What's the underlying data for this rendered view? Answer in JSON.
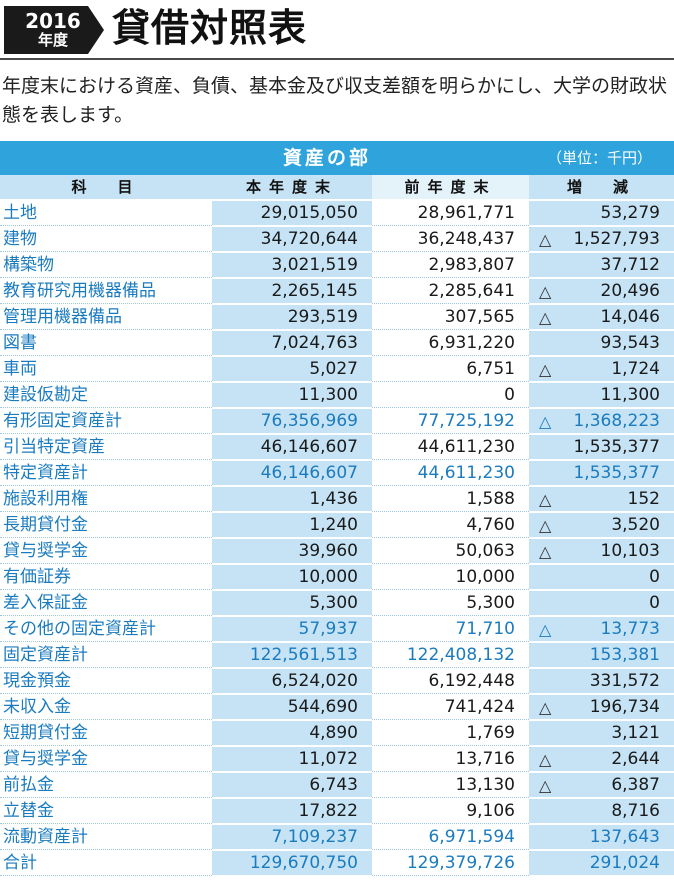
{
  "header": {
    "year": "2016",
    "year_label": "年度",
    "title": "貸借対照表"
  },
  "description": "年度末における資産、負債、基本金及び収支差額を明らかにし、大学の財政状態を表します。",
  "section": {
    "title": "資産の部",
    "unit": "（単位：千円）"
  },
  "columns": {
    "item": "科　目",
    "current": "本年度末",
    "previous": "前年度末",
    "change": "増　減"
  },
  "rows": [
    {
      "name": "土地",
      "current": "29,015,050",
      "previous": "28,961,771",
      "neg": "",
      "change": "53,279",
      "subtotal": false
    },
    {
      "name": "建物",
      "current": "34,720,644",
      "previous": "36,248,437",
      "neg": "△",
      "change": "1,527,793",
      "subtotal": false
    },
    {
      "name": "構築物",
      "current": "3,021,519",
      "previous": "2,983,807",
      "neg": "",
      "change": "37,712",
      "subtotal": false
    },
    {
      "name": "教育研究用機器備品",
      "current": "2,265,145",
      "previous": "2,285,641",
      "neg": "△",
      "change": "20,496",
      "subtotal": false
    },
    {
      "name": "管理用機器備品",
      "current": "293,519",
      "previous": "307,565",
      "neg": "△",
      "change": "14,046",
      "subtotal": false
    },
    {
      "name": "図書",
      "current": "7,024,763",
      "previous": "6,931,220",
      "neg": "",
      "change": "93,543",
      "subtotal": false
    },
    {
      "name": "車両",
      "current": "5,027",
      "previous": "6,751",
      "neg": "△",
      "change": "1,724",
      "subtotal": false
    },
    {
      "name": "建設仮勘定",
      "current": "11,300",
      "previous": "0",
      "neg": "",
      "change": "11,300",
      "subtotal": false
    },
    {
      "name": "有形固定資産計",
      "current": "76,356,969",
      "previous": "77,725,192",
      "neg": "△",
      "change": "1,368,223",
      "subtotal": true
    },
    {
      "name": "引当特定資産",
      "current": "46,146,607",
      "previous": "44,611,230",
      "neg": "",
      "change": "1,535,377",
      "subtotal": false
    },
    {
      "name": "特定資産計",
      "current": "46,146,607",
      "previous": "44,611,230",
      "neg": "",
      "change": "1,535,377",
      "subtotal": true
    },
    {
      "name": "施設利用権",
      "current": "1,436",
      "previous": "1,588",
      "neg": "△",
      "change": "152",
      "subtotal": false
    },
    {
      "name": "長期貸付金",
      "current": "1,240",
      "previous": "4,760",
      "neg": "△",
      "change": "3,520",
      "subtotal": false
    },
    {
      "name": "貸与奨学金",
      "current": "39,960",
      "previous": "50,063",
      "neg": "△",
      "change": "10,103",
      "subtotal": false
    },
    {
      "name": "有価証券",
      "current": "10,000",
      "previous": "10,000",
      "neg": "",
      "change": "0",
      "subtotal": false
    },
    {
      "name": "差入保証金",
      "current": "5,300",
      "previous": "5,300",
      "neg": "",
      "change": "0",
      "subtotal": false
    },
    {
      "name": "その他の固定資産計",
      "current": "57,937",
      "previous": "71,710",
      "neg": "△",
      "change": "13,773",
      "subtotal": true
    },
    {
      "name": "固定資産計",
      "current": "122,561,513",
      "previous": "122,408,132",
      "neg": "",
      "change": "153,381",
      "subtotal": true
    },
    {
      "name": "現金預金",
      "current": "6,524,020",
      "previous": "6,192,448",
      "neg": "",
      "change": "331,572",
      "subtotal": false
    },
    {
      "name": "未収入金",
      "current": "544,690",
      "previous": "741,424",
      "neg": "△",
      "change": "196,734",
      "subtotal": false
    },
    {
      "name": "短期貸付金",
      "current": "4,890",
      "previous": "1,769",
      "neg": "",
      "change": "3,121",
      "subtotal": false
    },
    {
      "name": "貸与奨学金",
      "current": "11,072",
      "previous": "13,716",
      "neg": "△",
      "change": "2,644",
      "subtotal": false
    },
    {
      "name": "前払金",
      "current": "6,743",
      "previous": "13,130",
      "neg": "△",
      "change": "6,387",
      "subtotal": false
    },
    {
      "name": "立替金",
      "current": "17,822",
      "previous": "9,106",
      "neg": "",
      "change": "8,716",
      "subtotal": false
    },
    {
      "name": "流動資産計",
      "current": "7,109,237",
      "previous": "6,971,594",
      "neg": "",
      "change": "137,643",
      "subtotal": true
    },
    {
      "name": "合計",
      "current": "129,670,750",
      "previous": "129,379,726",
      "neg": "",
      "change": "291,024",
      "subtotal": true
    }
  ]
}
